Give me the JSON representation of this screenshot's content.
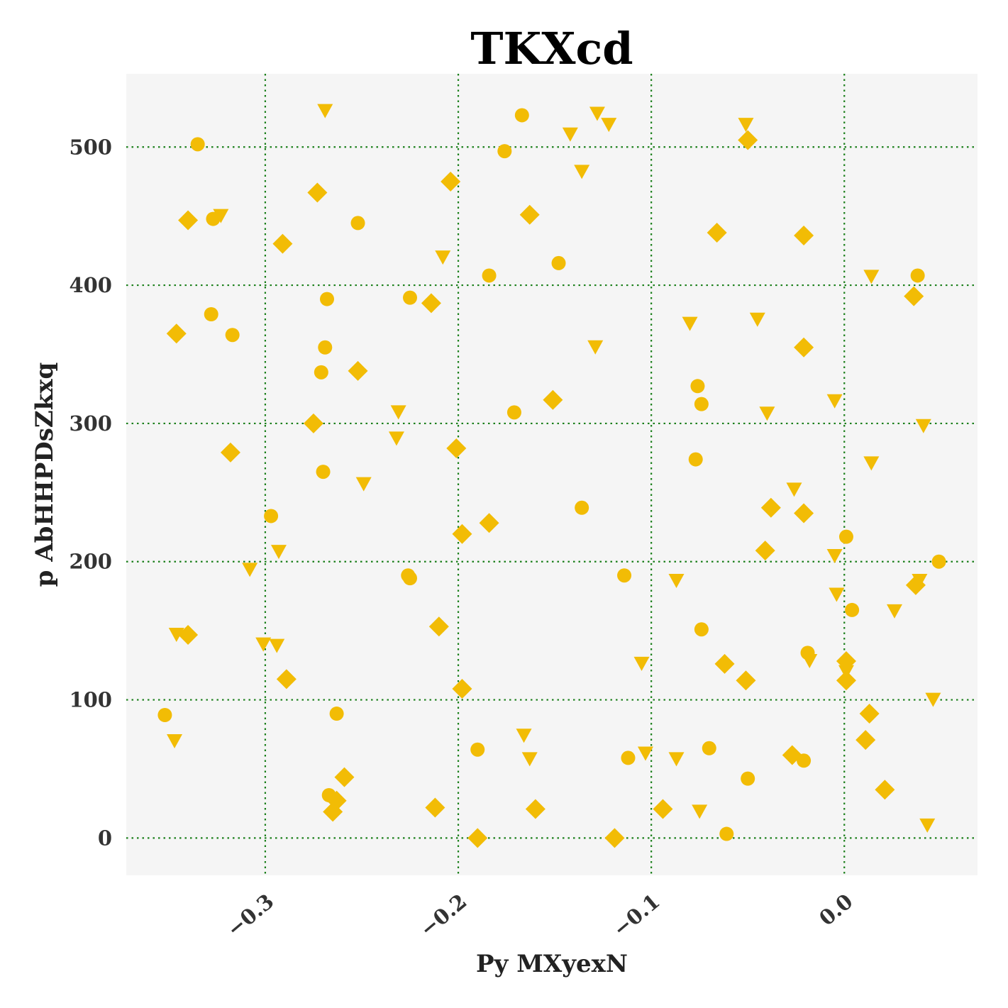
{
  "chart_data": {
    "type": "scatter",
    "title": "TKXcd",
    "xlabel": "Py MXyexN",
    "ylabel": "p  AbHHPDsZkxq",
    "xlim": [
      -0.372,
      0.069
    ],
    "ylim": [
      -27,
      553
    ],
    "xticks": [
      -0.3,
      -0.2,
      -0.1,
      0.0
    ],
    "xtick_labels": [
      "−0.3",
      "−0.2",
      "−0.1",
      "0.0"
    ],
    "yticks": [
      0,
      100,
      200,
      300,
      400,
      500
    ],
    "ytick_labels": [
      "0",
      "100",
      "200",
      "300",
      "400",
      "500"
    ],
    "grid": true,
    "grid_color": "#1a7f1a",
    "plot_background": "#f5f5f5",
    "marker_color": "#f2bc05",
    "series": [
      {
        "marker": "circle",
        "points": [
          [
            -0.335,
            502
          ],
          [
            -0.327,
            448
          ],
          [
            -0.328,
            379
          ],
          [
            -0.317,
            364
          ],
          [
            -0.352,
            89
          ],
          [
            -0.297,
            233
          ],
          [
            -0.268,
            390
          ],
          [
            -0.269,
            355
          ],
          [
            -0.271,
            337
          ],
          [
            -0.27,
            265
          ],
          [
            -0.252,
            445
          ],
          [
            -0.263,
            90
          ],
          [
            -0.267,
            31
          ],
          [
            -0.225,
            391
          ],
          [
            -0.226,
            190
          ],
          [
            -0.225,
            188
          ],
          [
            -0.19,
            64
          ],
          [
            -0.184,
            407
          ],
          [
            -0.176,
            497
          ],
          [
            -0.167,
            523
          ],
          [
            -0.171,
            308
          ],
          [
            -0.148,
            416
          ],
          [
            -0.136,
            239
          ],
          [
            -0.114,
            190
          ],
          [
            -0.112,
            58
          ],
          [
            -0.076,
            327
          ],
          [
            -0.074,
            314
          ],
          [
            -0.077,
            274
          ],
          [
            -0.074,
            151
          ],
          [
            -0.07,
            65
          ],
          [
            -0.061,
            3
          ],
          [
            -0.05,
            43
          ],
          [
            -0.019,
            134
          ],
          [
            -0.021,
            56
          ],
          [
            0.004,
            165
          ],
          [
            0.001,
            218
          ],
          [
            0.038,
            407
          ],
          [
            0.049,
            200
          ]
        ]
      },
      {
        "marker": "diamond",
        "points": [
          [
            -0.34,
            447
          ],
          [
            -0.346,
            365
          ],
          [
            -0.318,
            279
          ],
          [
            -0.34,
            147
          ],
          [
            -0.289,
            115
          ],
          [
            -0.291,
            430
          ],
          [
            -0.273,
            467
          ],
          [
            -0.275,
            300
          ],
          [
            -0.252,
            338
          ],
          [
            -0.259,
            44
          ],
          [
            -0.263,
            27
          ],
          [
            -0.265,
            19
          ],
          [
            -0.204,
            475
          ],
          [
            -0.214,
            387
          ],
          [
            -0.201,
            282
          ],
          [
            -0.198,
            220
          ],
          [
            -0.21,
            153
          ],
          [
            -0.198,
            108
          ],
          [
            -0.212,
            22
          ],
          [
            -0.19,
            0
          ],
          [
            -0.184,
            228
          ],
          [
            -0.163,
            451
          ],
          [
            -0.151,
            317
          ],
          [
            -0.16,
            21
          ],
          [
            -0.119,
            0
          ],
          [
            -0.094,
            21
          ],
          [
            -0.066,
            438
          ],
          [
            -0.05,
            505
          ],
          [
            -0.062,
            126
          ],
          [
            -0.051,
            114
          ],
          [
            -0.038,
            239
          ],
          [
            -0.041,
            208
          ],
          [
            -0.021,
            436
          ],
          [
            -0.021,
            355
          ],
          [
            -0.021,
            235
          ],
          [
            -0.027,
            60
          ],
          [
            0.001,
            128
          ],
          [
            0.001,
            114
          ],
          [
            0.013,
            90
          ],
          [
            0.011,
            71
          ],
          [
            0.021,
            35
          ],
          [
            0.036,
            392
          ],
          [
            0.037,
            183
          ]
        ]
      },
      {
        "marker": "triangle-down",
        "points": [
          [
            -0.269,
            526
          ],
          [
            -0.323,
            450
          ],
          [
            -0.346,
            147
          ],
          [
            -0.347,
            70
          ],
          [
            -0.308,
            194
          ],
          [
            -0.293,
            207
          ],
          [
            -0.301,
            140
          ],
          [
            -0.294,
            139
          ],
          [
            -0.231,
            308
          ],
          [
            -0.232,
            289
          ],
          [
            -0.249,
            256
          ],
          [
            -0.208,
            420
          ],
          [
            -0.142,
            509
          ],
          [
            -0.128,
            524
          ],
          [
            -0.122,
            516
          ],
          [
            -0.136,
            482
          ],
          [
            -0.129,
            355
          ],
          [
            -0.166,
            74
          ],
          [
            -0.163,
            57
          ],
          [
            -0.105,
            126
          ],
          [
            -0.103,
            61
          ],
          [
            -0.087,
            186
          ],
          [
            -0.087,
            57
          ],
          [
            -0.08,
            372
          ],
          [
            -0.075,
            19
          ],
          [
            -0.051,
            516
          ],
          [
            -0.045,
            375
          ],
          [
            -0.04,
            307
          ],
          [
            -0.026,
            252
          ],
          [
            -0.018,
            128
          ],
          [
            -0.005,
            316
          ],
          [
            -0.005,
            204
          ],
          [
            -0.004,
            176
          ],
          [
            0.001,
            120
          ],
          [
            0.014,
            406
          ],
          [
            0.014,
            271
          ],
          [
            0.026,
            164
          ],
          [
            0.041,
            298
          ],
          [
            0.039,
            186
          ],
          [
            0.046,
            100
          ],
          [
            0.043,
            9
          ]
        ]
      }
    ]
  }
}
